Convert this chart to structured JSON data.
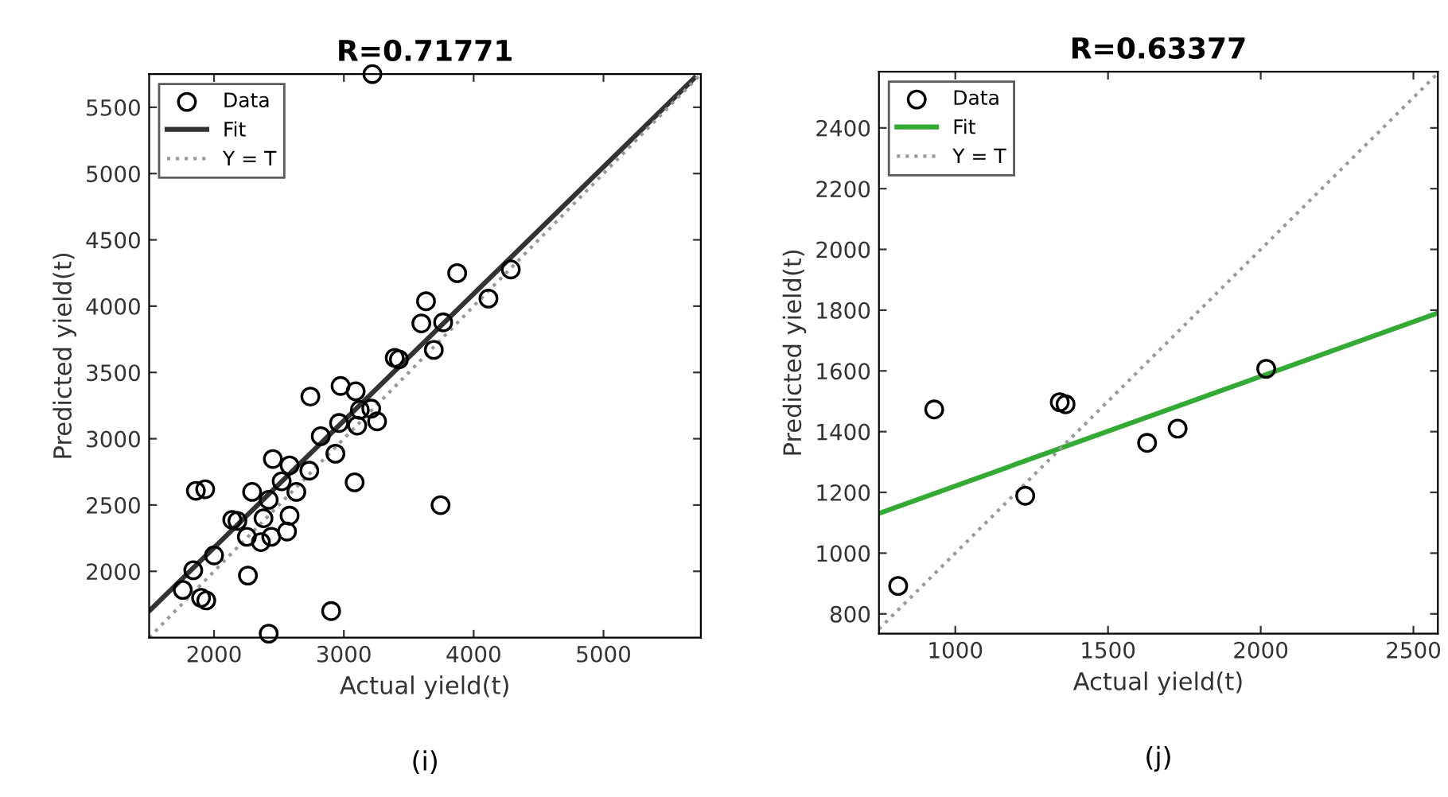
{
  "chart_data": [
    {
      "type": "scatter",
      "title": "R=0.71771",
      "xlabel": "Actual yield(t)",
      "ylabel": "Predicted yield(t)",
      "xlim": [
        1500,
        5750
      ],
      "ylim": [
        1500,
        5750
      ],
      "xticks": [
        2000,
        3000,
        4000,
        5000
      ],
      "yticks": [
        2000,
        2500,
        3000,
        3500,
        4000,
        4500,
        5000,
        5500
      ],
      "grid": false,
      "legend": "top left",
      "annotations": [
        "(i)"
      ],
      "series": [
        {
          "name": "Data",
          "marker": "circle",
          "color": "#000000",
          "x": [
            3220,
            3873,
            4286,
            4114,
            3633,
            3597,
            3765,
            3693,
            3392,
            3424,
            2975,
            3091,
            2742,
            3123,
            3211,
            3103,
            3256,
            2963,
            2822,
            2935,
            3083,
            2734,
            2582,
            2453,
            2521,
            2634,
            2293,
            2421,
            1860,
            1932,
            2140,
            2180,
            2381,
            2582,
            2253,
            2361,
            2441,
            2562,
            2000,
            1840,
            2261,
            1759,
            1900,
            1940,
            2902,
            2421,
            3745
          ],
          "values": [
            5750,
            4249,
            4277,
            4057,
            4037,
            3870,
            3878,
            3670,
            3610,
            3598,
            3398,
            3358,
            3318,
            3218,
            3227,
            3099,
            3131,
            3119,
            3019,
            2887,
            2671,
            2759,
            2799,
            2847,
            2679,
            2599,
            2599,
            2539,
            2607,
            2619,
            2388,
            2380,
            2400,
            2420,
            2260,
            2220,
            2260,
            2300,
            2120,
            2008,
            1968,
            1860,
            1800,
            1780,
            1700,
            1530,
            2499
          ]
        },
        {
          "name": "Fit",
          "type": "line",
          "line_style": "solid",
          "color": "#333333",
          "x": [
            1500,
            5700
          ],
          "values": [
            1700,
            5720
          ]
        },
        {
          "name": "Y = T",
          "type": "line",
          "line_style": "dotted",
          "color": "#999999",
          "x": [
            1500,
            5750
          ],
          "values": [
            1500,
            5750
          ]
        }
      ]
    },
    {
      "type": "scatter",
      "title": "R=0.63377",
      "xlabel": "Actual yield(t)",
      "ylabel": "Predicted yield(t)",
      "xlim": [
        750,
        2580
      ],
      "ylim": [
        735,
        2585
      ],
      "xticks": [
        1000,
        1500,
        2000,
        2500
      ],
      "yticks": [
        800,
        1000,
        1200,
        1400,
        1600,
        1800,
        2000,
        2200,
        2400
      ],
      "grid": false,
      "legend": "top left",
      "annotations": [
        "(j)"
      ],
      "series": [
        {
          "name": "Data",
          "marker": "circle",
          "color": "#000000",
          "x": [
            813,
            931,
            1229,
            1342,
            1361,
            1628,
            1728,
            2018
          ],
          "values": [
            892,
            1473,
            1189,
            1497,
            1490,
            1363,
            1410,
            1607
          ]
        },
        {
          "name": "Fit",
          "type": "line",
          "line_style": "solid",
          "color": "#33aa33",
          "x": [
            750,
            2578
          ],
          "values": [
            1131,
            1790
          ]
        },
        {
          "name": "Y = T",
          "type": "line",
          "line_style": "dotted",
          "color": "#999999",
          "x": [
            750,
            2580
          ],
          "values": [
            750,
            2580
          ]
        }
      ]
    }
  ]
}
